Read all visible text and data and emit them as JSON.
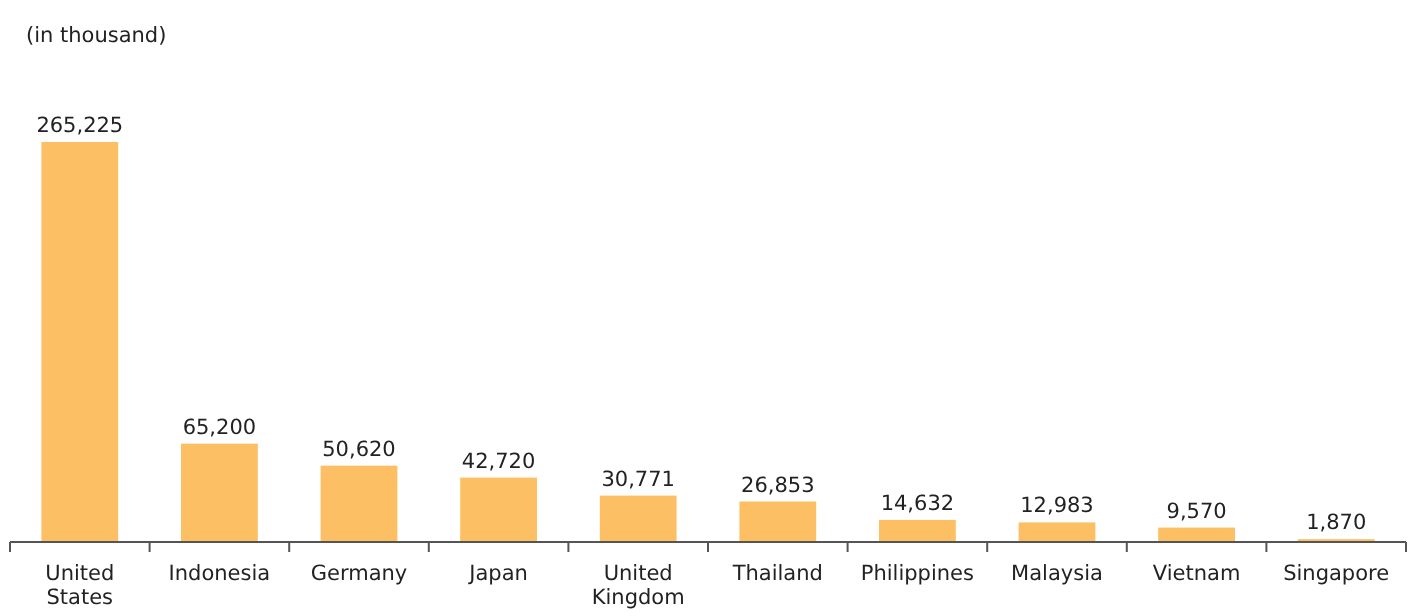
{
  "chart_data": {
    "type": "bar",
    "ylabel": "(in thousand)",
    "categories": [
      "United States",
      "Indonesia",
      "Germany",
      "Japan",
      "United Kingdom",
      "Thailand",
      "Philippines",
      "Malaysia",
      "Vietnam",
      "Singapore"
    ],
    "values": [
      265225,
      65200,
      50620,
      42720,
      30771,
      26853,
      14632,
      12983,
      9570,
      1870
    ],
    "value_labels": [
      "265,225",
      "65,200",
      "50,620",
      "42,720",
      "30,771",
      "26,853",
      "14,632",
      "12,983",
      "9,570",
      "1,870"
    ],
    "color": "#fdbf63"
  }
}
